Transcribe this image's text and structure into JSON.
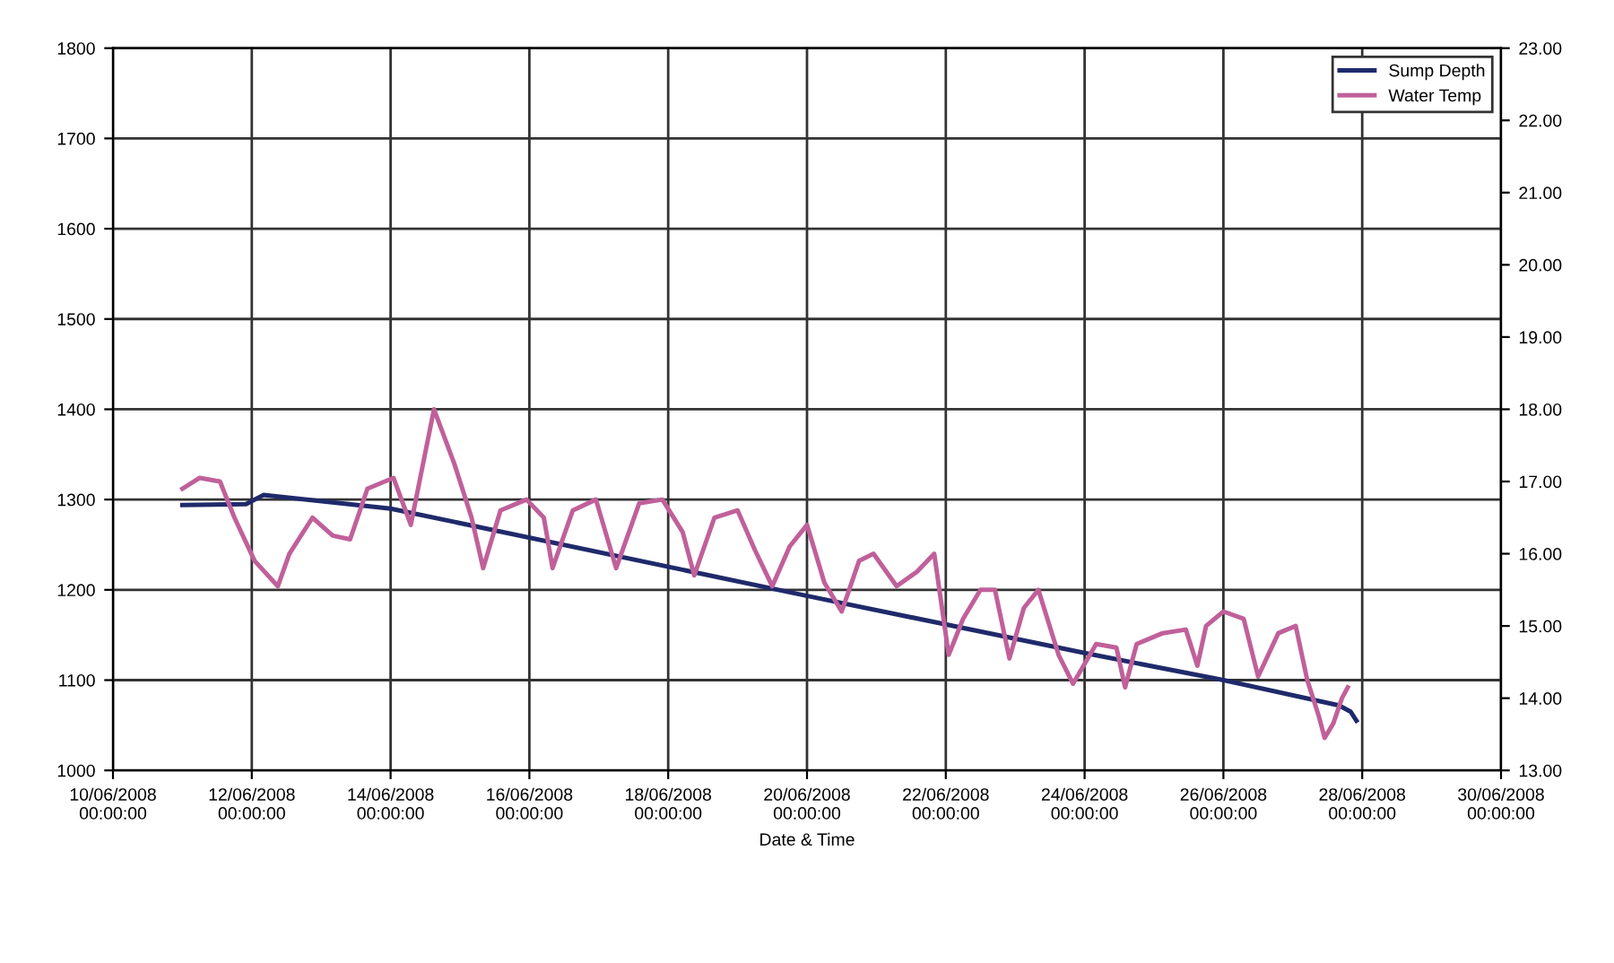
{
  "chart_data": {
    "type": "line",
    "xlabel": "Date & Time",
    "xlim": [
      "2008-06-10",
      "2008-06-30"
    ],
    "xticks": [
      {
        "value": "2008-06-10",
        "label": "10/06/2008\n00:00:00"
      },
      {
        "value": "2008-06-12",
        "label": "12/06/2008\n00:00:00"
      },
      {
        "value": "2008-06-14",
        "label": "14/06/2008\n00:00:00"
      },
      {
        "value": "2008-06-16",
        "label": "16/06/2008\n00:00:00"
      },
      {
        "value": "2008-06-18",
        "label": "18/06/2008\n00:00:00"
      },
      {
        "value": "2008-06-20",
        "label": "20/06/2008\n00:00:00"
      },
      {
        "value": "2008-06-22",
        "label": "22/06/2008\n00:00:00"
      },
      {
        "value": "2008-06-24",
        "label": "24/06/2008\n00:00:00"
      },
      {
        "value": "2008-06-26",
        "label": "26/06/2008\n00:00:00"
      },
      {
        "value": "2008-06-28",
        "label": "28/06/2008\n00:00:00"
      },
      {
        "value": "2008-06-30",
        "label": "30/06/2008\n00:00:00"
      }
    ],
    "ylim": [
      1000,
      1800
    ],
    "yticks": [
      1000,
      1100,
      1200,
      1300,
      1400,
      1500,
      1600,
      1700,
      1800
    ],
    "y2lim": [
      13,
      23
    ],
    "y2ticks": [
      {
        "value": 13,
        "label": "13.00"
      },
      {
        "value": 14,
        "label": "14.00"
      },
      {
        "value": 15,
        "label": "15.00"
      },
      {
        "value": 16,
        "label": "16.00"
      },
      {
        "value": 17,
        "label": "17.00"
      },
      {
        "value": 18,
        "label": "18.00"
      },
      {
        "value": 19,
        "label": "19.00"
      },
      {
        "value": 20,
        "label": "20.00"
      },
      {
        "value": 21,
        "label": "21.00"
      },
      {
        "value": 22,
        "label": "22.00"
      },
      {
        "value": 23,
        "label": "23.00"
      }
    ],
    "grid": true,
    "legend": "top right",
    "line_style": "solid",
    "series": [
      {
        "name": "Sump Depth",
        "color": "#1f2a6b",
        "axis": "y",
        "x": [
          "2008-06-11T00:00",
          "2008-06-11T22:00",
          "2008-06-12T04:00",
          "2008-06-14T00:00",
          "2008-06-19T23:00",
          "2008-06-24T00:00",
          "2008-06-26T00:00",
          "2008-06-27T16:00",
          "2008-06-27T20:00",
          "2008-06-27T22:00"
        ],
        "values": [
          1294,
          1295,
          1305,
          1290,
          1194,
          1130,
          1100,
          1072,
          1065,
          1055
        ]
      },
      {
        "name": "Water Temp",
        "color": "#c0609a",
        "axis": "y2",
        "x": [
          "2008-06-11T00:00",
          "2008-06-11T06:00",
          "2008-06-11T13:00",
          "2008-06-11T18:00",
          "2008-06-12T01:00",
          "2008-06-12T09:00",
          "2008-06-12T13:00",
          "2008-06-12T21:00",
          "2008-06-13T04:00",
          "2008-06-13T10:00",
          "2008-06-13T16:00",
          "2008-06-14T01:00",
          "2008-06-14T07:00",
          "2008-06-14T15:00",
          "2008-06-14T22:00",
          "2008-06-15T04:00",
          "2008-06-15T08:00",
          "2008-06-15T14:00",
          "2008-06-15T23:00",
          "2008-06-16T05:00",
          "2008-06-16T08:00",
          "2008-06-16T15:00",
          "2008-06-16T23:00",
          "2008-06-17T06:00",
          "2008-06-17T14:00",
          "2008-06-17T22:00",
          "2008-06-18T05:00",
          "2008-06-18T09:00",
          "2008-06-18T16:00",
          "2008-06-19T00:00",
          "2008-06-19T06:00",
          "2008-06-19T12:00",
          "2008-06-19T18:00",
          "2008-06-20T00:00",
          "2008-06-20T06:00",
          "2008-06-20T12:00",
          "2008-06-20T18:00",
          "2008-06-20T23:00",
          "2008-06-21T07:00",
          "2008-06-21T14:00",
          "2008-06-21T20:00",
          "2008-06-22T01:00",
          "2008-06-22T06:00",
          "2008-06-22T12:00",
          "2008-06-22T17:00",
          "2008-06-22T22:00",
          "2008-06-23T03:00",
          "2008-06-23T08:00",
          "2008-06-23T15:00",
          "2008-06-23T20:00",
          "2008-06-24T04:00",
          "2008-06-24T11:00",
          "2008-06-24T14:00",
          "2008-06-24T18:00",
          "2008-06-25T03:00",
          "2008-06-25T11:00",
          "2008-06-25T15:00",
          "2008-06-25T18:00",
          "2008-06-26T00:00",
          "2008-06-26T07:00",
          "2008-06-26T12:00",
          "2008-06-26T19:00",
          "2008-06-27T01:00",
          "2008-06-27T05:00",
          "2008-06-27T09:00",
          "2008-06-27T11:00",
          "2008-06-27T14:00",
          "2008-06-27T17:00",
          "2008-06-27T19:00"
        ],
        "values": [
          16.9,
          17.05,
          17.0,
          16.5,
          15.9,
          15.55,
          16.0,
          16.5,
          16.25,
          16.2,
          16.9,
          17.05,
          16.4,
          18.0,
          17.25,
          16.5,
          15.8,
          16.6,
          16.75,
          16.5,
          15.8,
          16.6,
          16.75,
          15.8,
          16.7,
          16.75,
          16.3,
          15.7,
          16.5,
          16.6,
          16.05,
          15.55,
          16.1,
          16.4,
          15.6,
          15.2,
          15.9,
          16.0,
          15.55,
          15.75,
          16.0,
          14.6,
          15.1,
          15.5,
          15.5,
          14.55,
          15.25,
          15.5,
          14.6,
          14.2,
          14.75,
          14.7,
          14.15,
          14.75,
          14.9,
          14.95,
          14.45,
          15.0,
          15.2,
          15.1,
          14.3,
          14.9,
          15.0,
          14.25,
          13.75,
          13.45,
          13.65,
          14.0,
          14.15
        ]
      }
    ]
  }
}
